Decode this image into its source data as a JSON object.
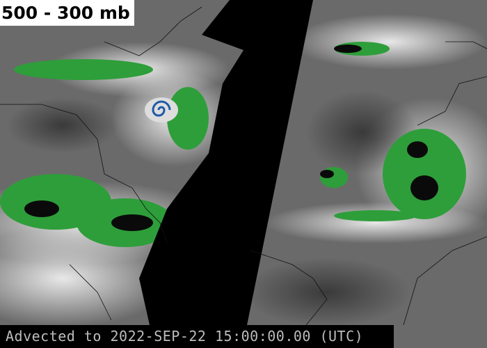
{
  "title": "500 - 300 mb",
  "footer": "Advected to 2022-SEP-22 15:00:00.00 (UTC)",
  "colors": {
    "moisture_green": "#2e9e3a",
    "moisture_blue": "#1e5aa8",
    "no_data": "#000000",
    "background_gray": "#6a6a6a"
  }
}
